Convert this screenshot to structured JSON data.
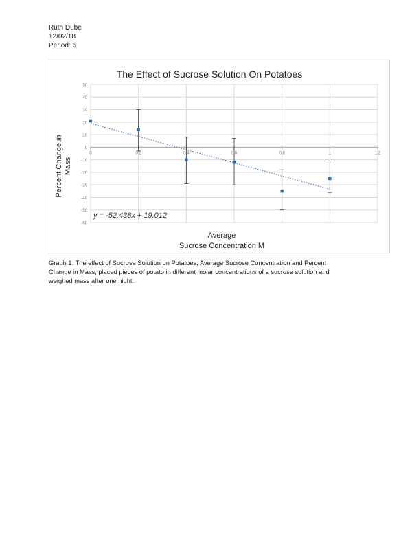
{
  "header": {
    "name": "Ruth Dube",
    "date": "12/02/18",
    "period": "Period: 6"
  },
  "chart_data": {
    "type": "scatter",
    "title": "The Effect of Sucrose Solution On Potatoes",
    "xlabel_line1": "Average",
    "xlabel_line2": "Sucrose Concentration M",
    "ylabel_line1": "Percent Change in",
    "ylabel_line2": "Mass",
    "xlim": [
      0,
      1.2
    ],
    "ylim": [
      -60,
      50
    ],
    "y_ticks": [
      "50",
      "40",
      "30",
      "20",
      "10",
      "0",
      "-10",
      "-20",
      "-30",
      "-40",
      "-50",
      "-60"
    ],
    "x_ticks": [
      "0",
      "0.2",
      "0.4",
      "0.6",
      "0.8",
      "1",
      "1.2"
    ],
    "grid": true,
    "legend": "none",
    "marker_color": "#2e6da4",
    "trendline_color": "#4a7fc0",
    "series": [
      {
        "x": [
          0,
          0.2,
          0.4,
          0.6,
          0.8,
          1.0
        ],
        "y": [
          21,
          14,
          -10,
          -12,
          -35,
          -25
        ],
        "err_plus": [
          null,
          16,
          18,
          19,
          17,
          14
        ],
        "err_minus": [
          null,
          17,
          19,
          18,
          15,
          11
        ]
      }
    ],
    "trendline": {
      "slope": -52.438,
      "intercept": 19.012,
      "x_range": [
        0,
        1.0
      ]
    },
    "equation": "y = -52.438x + 19.012"
  },
  "caption": {
    "line1": "Graph 1. The effect of Sucrose Solution on Potatoes, Average Sucrose Concentration and Percent",
    "line2": "Change in Mass, placed pieces of potato in different molar concentrations of a sucrose solution and",
    "line3": "weighed mass after one night."
  }
}
